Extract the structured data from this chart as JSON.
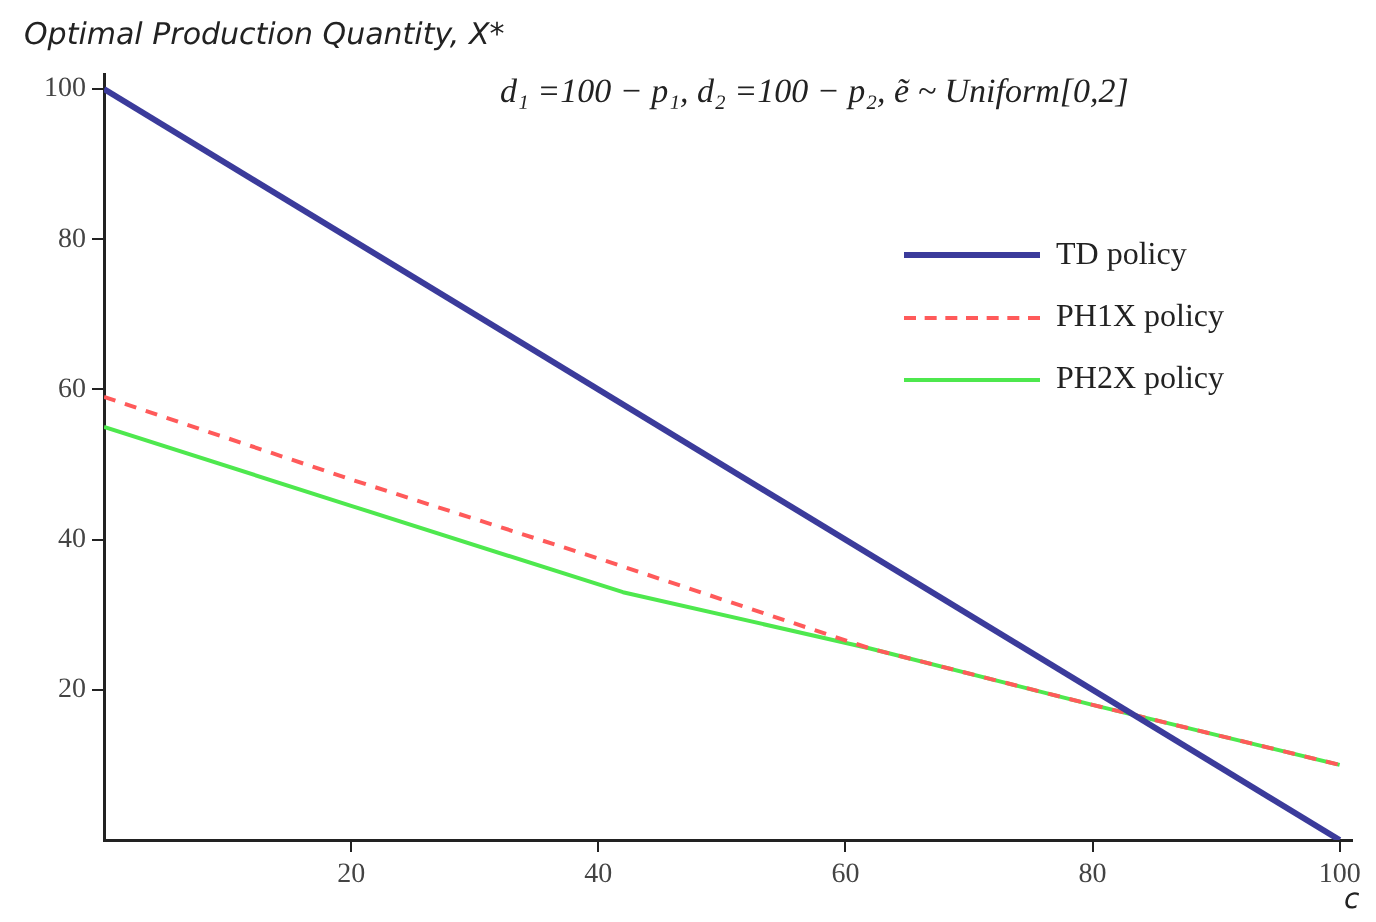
{
  "chart_data": {
    "type": "line",
    "ylabel": "Optimal Production Quantity, X*",
    "xlabel": "c",
    "annotations": [
      "d₁ =100 − p₁,  d₂ =100 − p₂,  ẽ ~ Uniform[0,2]"
    ],
    "xlim": [
      0,
      101
    ],
    "xticks": [
      20,
      40,
      60,
      80,
      100
    ],
    "ylim": [
      0,
      102
    ],
    "yticks": [
      20,
      40,
      60,
      80,
      100
    ],
    "grid": false,
    "legend": "top right",
    "marker": "none",
    "series": [
      {
        "name": "TD policy",
        "color": "#3b3b9b",
        "line_style": "solid",
        "x": [
          0,
          100
        ],
        "values": [
          100,
          0
        ]
      },
      {
        "name": "PH1X policy",
        "color": "#ff5a5a",
        "line_style": "dashed",
        "x": [
          0,
          20,
          40,
          62,
          80,
          100
        ],
        "values": [
          59,
          48,
          37.5,
          25.5,
          18,
          10
        ]
      },
      {
        "name": "PH2X policy",
        "color": "#4ee84e",
        "line_style": "solid",
        "x": [
          0,
          20,
          42,
          62,
          80,
          100
        ],
        "values": [
          55,
          44.5,
          33,
          25.5,
          18,
          10
        ]
      }
    ]
  }
}
